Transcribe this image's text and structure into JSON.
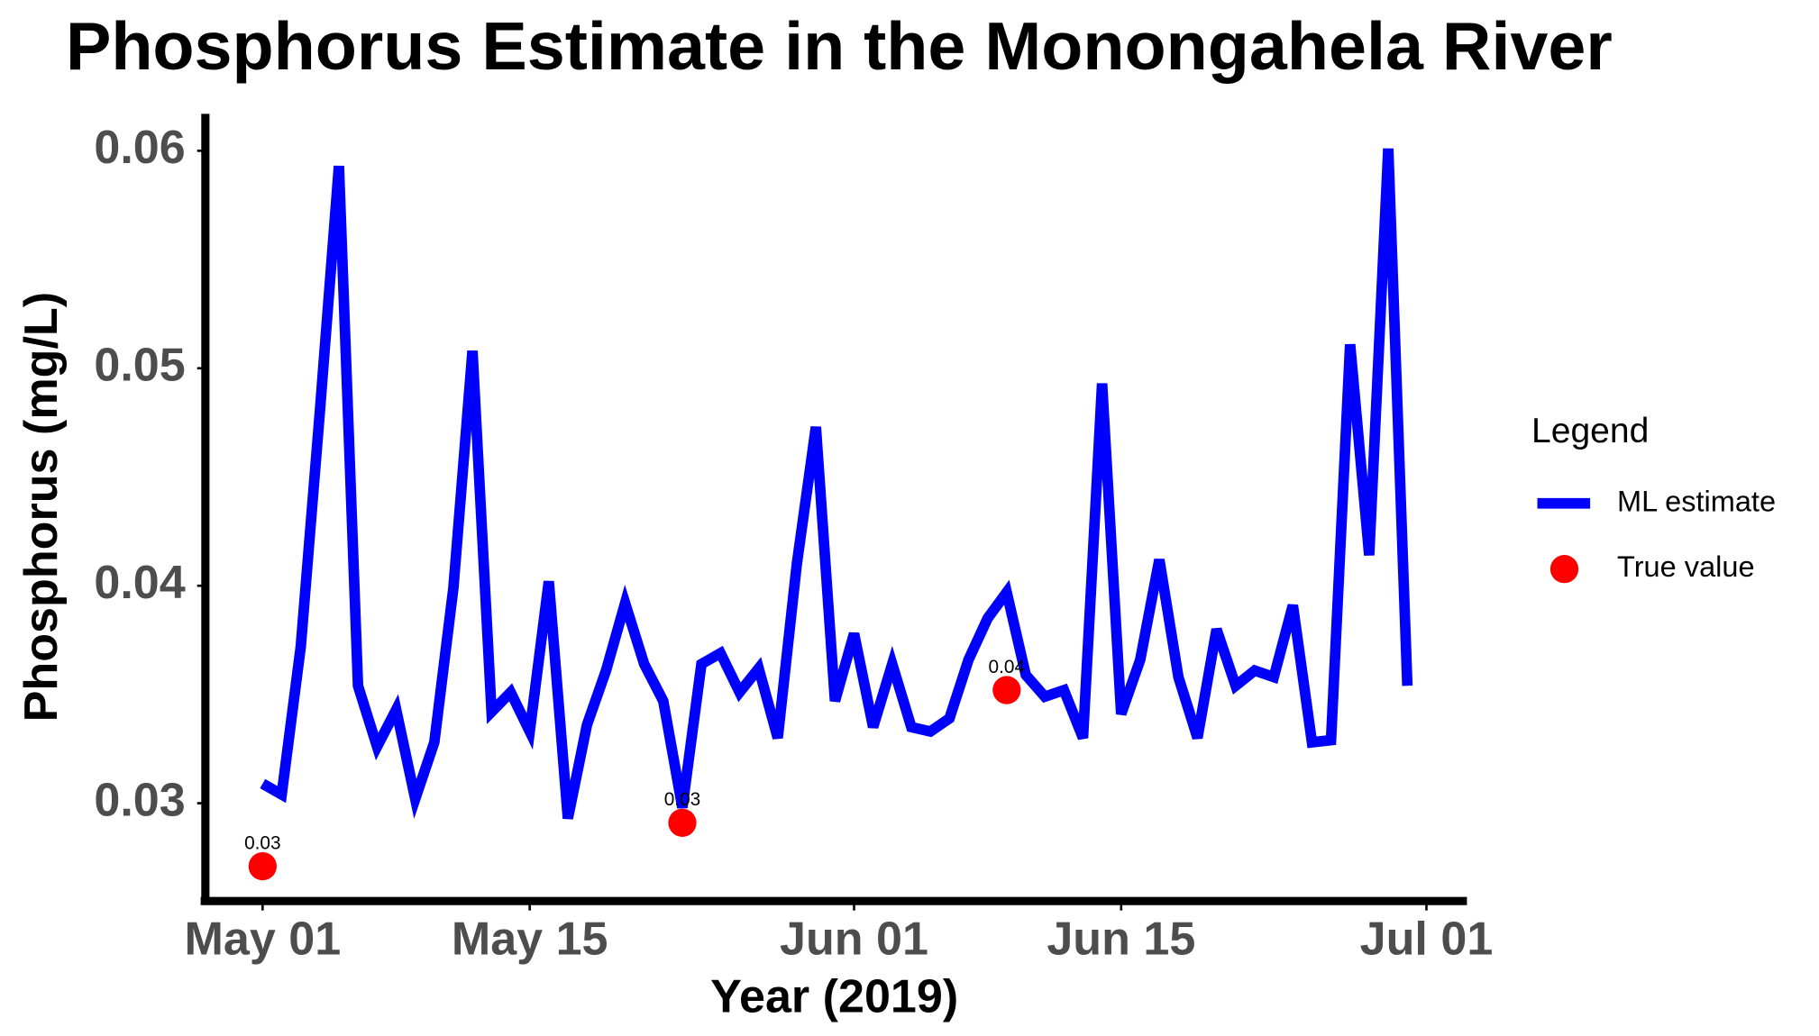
{
  "chart_data": {
    "type": "line",
    "title": "Phosphorus Estimate in the Monongahela River",
    "x_label": "Year (2019)",
    "y_label": "Phosphorus (mg/L)",
    "legend_title": "Legend",
    "legend_position": "right",
    "x": [
      "2019-05-01",
      "2019-05-02",
      "2019-05-03",
      "2019-05-04",
      "2019-05-05",
      "2019-05-06",
      "2019-05-07",
      "2019-05-08",
      "2019-05-09",
      "2019-05-10",
      "2019-05-11",
      "2019-05-12",
      "2019-05-13",
      "2019-05-14",
      "2019-05-15",
      "2019-05-16",
      "2019-05-17",
      "2019-05-18",
      "2019-05-19",
      "2019-05-20",
      "2019-05-21",
      "2019-05-22",
      "2019-05-23",
      "2019-05-24",
      "2019-05-25",
      "2019-05-26",
      "2019-05-27",
      "2019-05-28",
      "2019-05-29",
      "2019-05-30",
      "2019-05-31",
      "2019-06-01",
      "2019-06-02",
      "2019-06-03",
      "2019-06-04",
      "2019-06-05",
      "2019-06-06",
      "2019-06-07",
      "2019-06-08",
      "2019-06-09",
      "2019-06-10",
      "2019-06-11",
      "2019-06-12",
      "2019-06-13",
      "2019-06-14",
      "2019-06-15",
      "2019-06-16",
      "2019-06-17",
      "2019-06-18",
      "2019-06-19",
      "2019-06-20",
      "2019-06-21",
      "2019-06-22",
      "2019-06-23",
      "2019-06-24",
      "2019-06-25",
      "2019-06-26",
      "2019-06-27",
      "2019-06-28",
      "2019-06-29",
      "2019-06-30"
    ],
    "series": [
      {
        "name": "ML estimate",
        "type": "line",
        "color": "#0000ff",
        "values": [
          0.0309,
          0.0304,
          0.0372,
          0.048,
          0.0593,
          0.0354,
          0.0326,
          0.0343,
          0.0302,
          0.0328,
          0.0399,
          0.0508,
          0.0342,
          0.0351,
          0.0333,
          0.0402,
          0.0293,
          0.0336,
          0.0361,
          0.0392,
          0.0364,
          0.0347,
          0.0298,
          0.0364,
          0.0369,
          0.0351,
          0.0362,
          0.033,
          0.041,
          0.0473,
          0.0347,
          0.0378,
          0.0335,
          0.0364,
          0.0335,
          0.0333,
          0.0339,
          0.0366,
          0.0385,
          0.0397,
          0.0359,
          0.0349,
          0.0352,
          0.033,
          0.0493,
          0.0341,
          0.0366,
          0.0412,
          0.0358,
          0.033,
          0.038,
          0.0354,
          0.0361,
          0.0358,
          0.0391,
          0.0328,
          0.0329,
          0.0511,
          0.0414,
          0.0601,
          0.0354
        ]
      },
      {
        "name": "True value",
        "type": "scatter",
        "color": "#ff0000",
        "x": [
          "2019-05-01",
          "2019-05-23",
          "2019-06-09"
        ],
        "values": [
          0.0271,
          0.0291,
          0.0352
        ],
        "value_labels": [
          "0.03",
          "0.03",
          "0.04"
        ]
      }
    ],
    "xlim": [
      "2019-04-28",
      "2019-07-03"
    ],
    "xticks": [
      {
        "value": "2019-05-01",
        "label": "May 01"
      },
      {
        "value": "2019-05-15",
        "label": "May 15"
      },
      {
        "value": "2019-06-01",
        "label": "Jun 01"
      },
      {
        "value": "2019-06-15",
        "label": "Jun 15"
      },
      {
        "value": "2019-07-01",
        "label": "Jul 01"
      }
    ],
    "ylim": [
      0.0255,
      0.0617
    ],
    "yticks": [
      0.03,
      0.04,
      0.05,
      0.06
    ],
    "grid": false
  }
}
